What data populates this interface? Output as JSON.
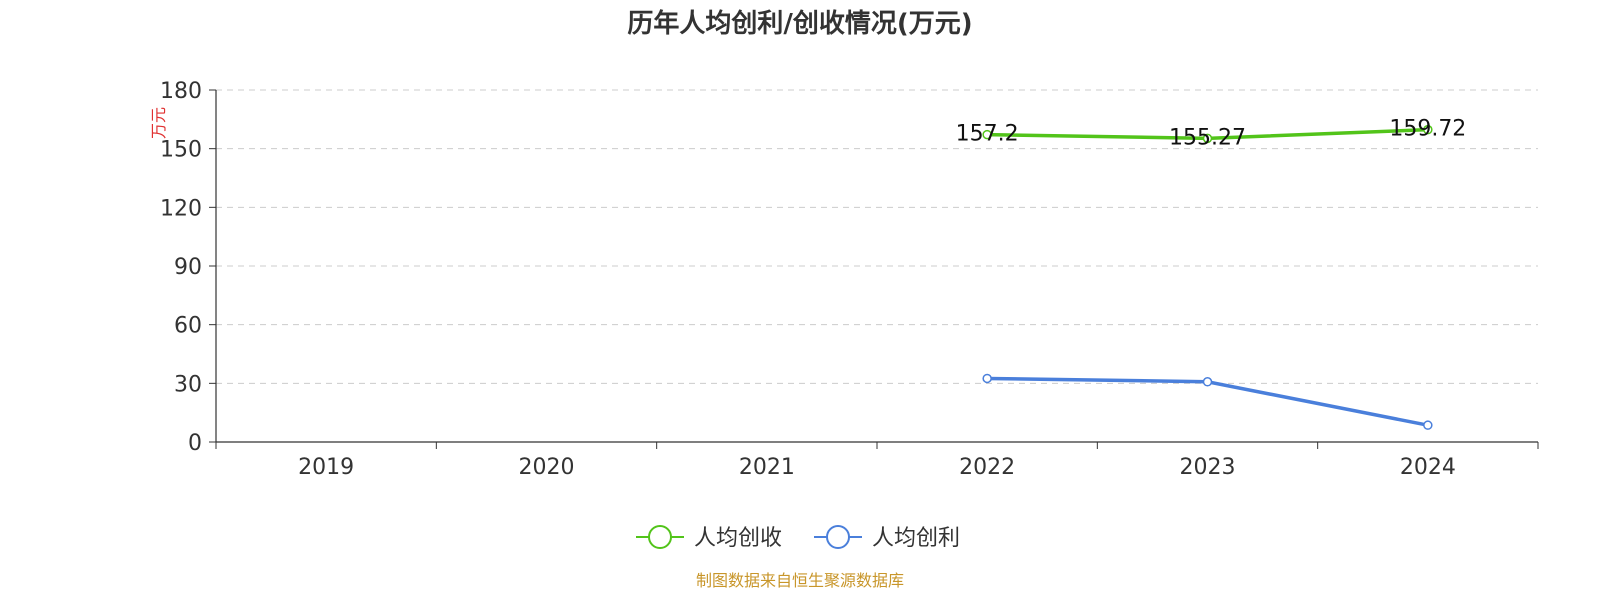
{
  "source_note": "制图数据来自恒生聚源数据库",
  "colors": {
    "unit": "#e03030",
    "source": "#c8962a",
    "axis": "#333333",
    "grid": "#cccccc"
  },
  "chart_data": {
    "type": "line",
    "title": "历年人均创利/创收情况(万元)",
    "ylabel": "万元",
    "xlabel": "",
    "categories": [
      "2019",
      "2020",
      "2021",
      "2022",
      "2023",
      "2024"
    ],
    "ylim": [
      0,
      180
    ],
    "yticks": [
      0,
      30,
      60,
      90,
      120,
      150,
      180
    ],
    "grid": true,
    "legend_position": "bottom-center",
    "series": [
      {
        "name": "人均创收",
        "color": "#52c41a",
        "values": [
          null,
          null,
          null,
          157.2,
          155.27,
          159.72
        ],
        "labels": [
          "",
          "",
          "",
          "157.2",
          "155.27",
          "159.72"
        ],
        "show_labels": true
      },
      {
        "name": "人均创利",
        "color": "#4a7fdb",
        "values": [
          null,
          null,
          null,
          32.5,
          30.8,
          8.6
        ],
        "labels": [],
        "show_labels": false
      }
    ]
  }
}
